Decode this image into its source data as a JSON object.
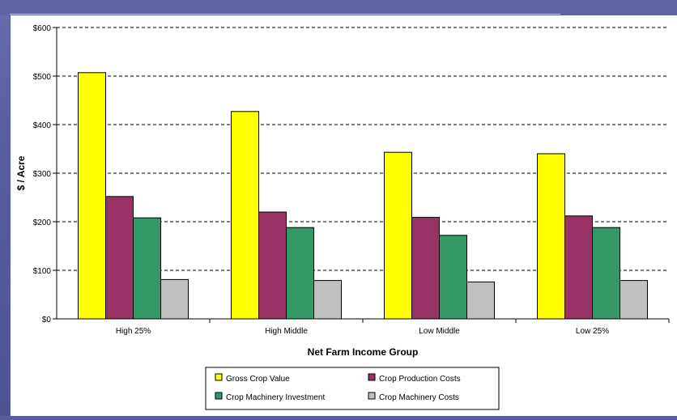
{
  "chart_data": {
    "type": "bar",
    "title": "",
    "xlabel": "Net Farm Income Group",
    "ylabel": "$ / Acre",
    "ylim": [
      0,
      600
    ],
    "yticks": [
      0,
      100,
      200,
      300,
      400,
      500,
      600
    ],
    "ytick_labels": [
      "$0",
      "$100",
      "$200",
      "$300",
      "$400",
      "$500",
      "$600"
    ],
    "grid": "horizontal dashed",
    "legend_position": "bottom",
    "categories": [
      "High 25%",
      "High Middle",
      "Low Middle",
      "Low 25%"
    ],
    "series": [
      {
        "name": "Gross Crop Value",
        "color": "#ffff00",
        "values": [
          507,
          427,
          343,
          340
        ]
      },
      {
        "name": "Crop Production Costs",
        "color": "#993366",
        "values": [
          252,
          220,
          209,
          212
        ]
      },
      {
        "name": "Crop Machinery Investment",
        "color": "#339966",
        "values": [
          208,
          188,
          172,
          188
        ]
      },
      {
        "name": "Crop Machinery Costs",
        "color": "#c0c0c0",
        "values": [
          81,
          79,
          76,
          79
        ]
      }
    ]
  }
}
